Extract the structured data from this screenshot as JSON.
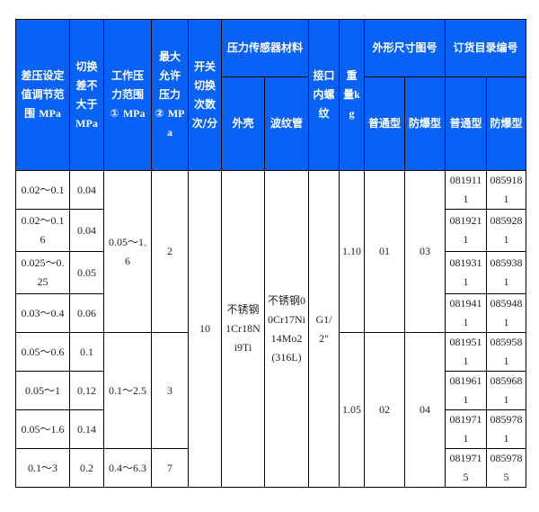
{
  "header": {
    "diff_range": "差压设定值调节范围",
    "diff_range_unit": "MPa",
    "switch_diff": "切换差不大于",
    "switch_diff_unit": "MPa",
    "work_range": "工作压力范围①",
    "work_range_unit": "MPa",
    "max_pressure": "最大允许压力②",
    "max_pressure_unit": "MPa",
    "switch_freq": "开关切换次数次/分",
    "sensor_material": "压力传感器材料",
    "shell": "外壳",
    "bellows": "波纹管",
    "port_thread": "接口内螺纹",
    "weight": "重量",
    "weight_unit": "kg",
    "outline_no": "外形尺寸图号",
    "order_no": "订货目录编号",
    "normal": "普通型",
    "explosion_proof": "防爆型"
  },
  "rows": [
    {
      "diff_range": "0.02～0.1",
      "switch_diff": "0.04",
      "order_normal": "0819111",
      "order_ex": "0859181"
    },
    {
      "diff_range": "0.02～0.16",
      "switch_diff": "0.04",
      "order_normal": "0819211",
      "order_ex": "0859281"
    },
    {
      "diff_range": "0.025～0.25",
      "switch_diff": "0.05",
      "order_normal": "0819311",
      "order_ex": "0859381"
    },
    {
      "diff_range": "0.03～0.4",
      "switch_diff": "0.06",
      "order_normal": "0819411",
      "order_ex": "0859481"
    },
    {
      "diff_range": "0.05～0.6",
      "switch_diff": "0.1",
      "order_normal": "0819511",
      "order_ex": "0859581"
    },
    {
      "diff_range": "0.05～1",
      "switch_diff": "0.12",
      "order_normal": "0819611",
      "order_ex": "0859681"
    },
    {
      "diff_range": "0.05～1.6",
      "switch_diff": "0.14",
      "order_normal": "0819711",
      "order_ex": "0859781"
    },
    {
      "diff_range": "0.1～3",
      "switch_diff": "0.2",
      "order_normal": "0819715",
      "order_ex": "0859785"
    }
  ],
  "groups": {
    "work_range": [
      "0.05～1.6",
      "0.1～2.5",
      "0.4～6.3"
    ],
    "max_pressure": [
      "2",
      "3",
      "7"
    ],
    "switch_freq": "10",
    "shell": "不锈钢1Cr18Ni9Ti",
    "bellows": "不锈钢00Cr17Ni14Mo2(316L)",
    "port_thread": "G1/2\"",
    "weight": [
      "1.10",
      "1.05"
    ],
    "outline_normal": [
      "01",
      "02"
    ],
    "outline_ex": [
      "03",
      "04"
    ]
  }
}
